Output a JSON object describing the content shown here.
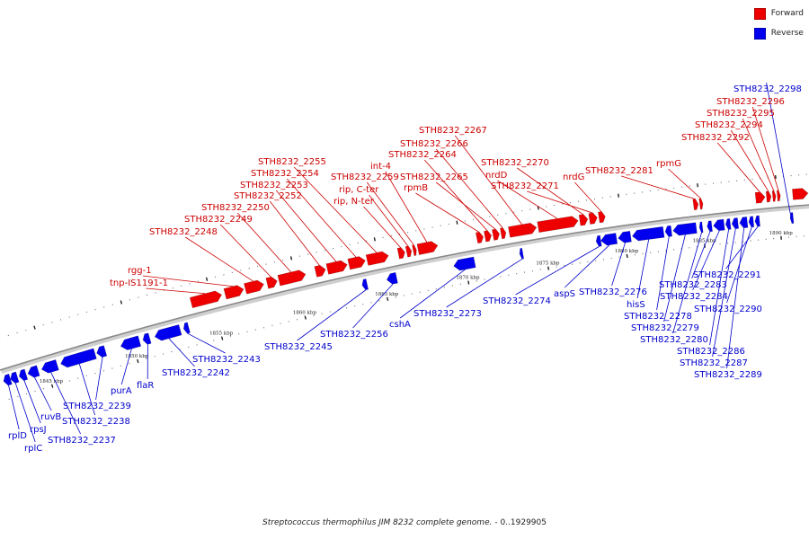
{
  "legend": {
    "forward": {
      "label": "Forward",
      "color": "#ee0000"
    },
    "reverse": {
      "label": "Reverse",
      "color": "#0000ee"
    }
  },
  "caption": {
    "genome": "Streptococcus thermophilus JIM 8232 complete genome.",
    "range": " - 0..1929905"
  },
  "axis": {
    "start_kb": 1842.5,
    "end_kb": 1892,
    "ticks": [
      {
        "kb": 1845,
        "label": "1845 kbp"
      },
      {
        "kb": 1850,
        "label": "1850 kbp"
      },
      {
        "kb": 1855,
        "label": "1855 kbp"
      },
      {
        "kb": 1860,
        "label": "1860 kbp"
      },
      {
        "kb": 1865,
        "label": "1865 kbp"
      },
      {
        "kb": 1870,
        "label": "1870 kbp"
      },
      {
        "kb": 1875,
        "label": "1875 kbp"
      },
      {
        "kb": 1880,
        "label": "1880 kbp"
      },
      {
        "kb": 1885,
        "label": "1885 kbp"
      },
      {
        "kb": 1890,
        "label": "1890 kbp"
      }
    ]
  },
  "genes": [
    {
      "strand": "reverse",
      "start_kb": 1842.5,
      "end_kb": 1842.9,
      "label": "rplD",
      "side": 0
    },
    {
      "strand": "reverse",
      "start_kb": 1842.9,
      "end_kb": 1843.3,
      "label": "rplC",
      "side": 1
    },
    {
      "strand": "reverse",
      "start_kb": 1843.4,
      "end_kb": 1843.8,
      "label": "rpsJ",
      "side": 2
    },
    {
      "strand": "reverse",
      "start_kb": 1843.9,
      "end_kb": 1844.5,
      "label": "ruvB",
      "side": 3
    },
    {
      "strand": "reverse",
      "start_kb": 1844.7,
      "end_kb": 1845.6,
      "label": "STH8232_2237",
      "side": 4
    },
    {
      "strand": "reverse",
      "start_kb": 1845.8,
      "end_kb": 1847.8,
      "label": "STH8232_2238",
      "side": 5
    },
    {
      "strand": "reverse",
      "start_kb": 1847.9,
      "end_kb": 1848.4,
      "label": "STH8232_2239",
      "side": 6
    },
    {
      "strand": "reverse",
      "start_kb": 1849.3,
      "end_kb": 1850.4,
      "label": "purA",
      "side": 7
    },
    {
      "strand": "reverse",
      "start_kb": 1850.6,
      "end_kb": 1851.0,
      "label": "flaR",
      "side": 8
    },
    {
      "strand": "reverse",
      "start_kb": 1851.3,
      "end_kb": 1852.8,
      "label": "STH8232_2242",
      "side": 9
    },
    {
      "strand": "reverse",
      "start_kb": 1853.0,
      "end_kb": 1853.3,
      "label": "STH8232_2243",
      "side": 10
    },
    {
      "strand": "forward",
      "start_kb": 1853.8,
      "end_kb": 1855.6,
      "label": "tnp-IS1191-1",
      "side": 0
    },
    {
      "strand": "forward",
      "start_kb": 1855.8,
      "end_kb": 1856.9,
      "label": "rgg-1",
      "side": 1
    },
    {
      "strand": "forward",
      "start_kb": 1857.0,
      "end_kb": 1858.1,
      "label": "STH8232_2248",
      "side": 2
    },
    {
      "strand": "forward",
      "start_kb": 1858.3,
      "end_kb": 1858.9,
      "label": "STH8232_2249",
      "side": 3
    },
    {
      "strand": "forward",
      "start_kb": 1859.0,
      "end_kb": 1860.6,
      "label": "STH8232_2250",
      "side": 4
    },
    {
      "strand": "forward",
      "start_kb": 1861.2,
      "end_kb": 1861.8,
      "label": "STH8232_2252",
      "side": 5
    },
    {
      "strand": "forward",
      "start_kb": 1861.9,
      "end_kb": 1863.1,
      "label": "STH8232_2253",
      "side": 6
    },
    {
      "strand": "forward",
      "start_kb": 1863.2,
      "end_kb": 1864.2,
      "label": "STH8232_2254",
      "side": 7
    },
    {
      "strand": "reverse",
      "start_kb": 1863.7,
      "end_kb": 1864.0,
      "label": "STH8232_2245",
      "side": 11
    },
    {
      "strand": "forward",
      "start_kb": 1864.3,
      "end_kb": 1865.6,
      "label": "STH8232_2255",
      "side": 8
    },
    {
      "strand": "reverse",
      "start_kb": 1865.2,
      "end_kb": 1865.8,
      "label": "STH8232_2256",
      "side": 12
    },
    {
      "strand": "forward",
      "start_kb": 1866.2,
      "end_kb": 1866.6,
      "label": "rip, N-ter",
      "side": 9
    },
    {
      "strand": "forward",
      "start_kb": 1866.7,
      "end_kb": 1867.0,
      "label": "rip, C-ter",
      "side": 10
    },
    {
      "strand": "forward",
      "start_kb": 1867.1,
      "end_kb": 1867.3,
      "label": "STH8232_2259",
      "side": 11
    },
    {
      "strand": "forward",
      "start_kb": 1867.4,
      "end_kb": 1868.6,
      "label": "int-4",
      "side": 12
    },
    {
      "strand": "reverse",
      "start_kb": 1869.3,
      "end_kb": 1870.6,
      "label": "cshA",
      "side": 13
    },
    {
      "strand": "forward",
      "start_kb": 1871.0,
      "end_kb": 1871.4,
      "label": "rpmB",
      "side": 13
    },
    {
      "strand": "forward",
      "start_kb": 1871.5,
      "end_kb": 1871.9,
      "label": "STH8232_2264",
      "side": 14
    },
    {
      "strand": "forward",
      "start_kb": 1872.0,
      "end_kb": 1872.4,
      "label": "STH8232_2265",
      "side": 15
    },
    {
      "strand": "forward",
      "start_kb": 1872.5,
      "end_kb": 1872.8,
      "label": "STH8232_2266",
      "side": 16
    },
    {
      "strand": "forward",
      "start_kb": 1873.0,
      "end_kb": 1874.7,
      "label": "STH8232_2267",
      "side": 17
    },
    {
      "strand": "reverse",
      "start_kb": 1873.4,
      "end_kb": 1873.6,
      "label": "STH8232_2273",
      "side": 14
    },
    {
      "strand": "forward",
      "start_kb": 1874.8,
      "end_kb": 1877.3,
      "label": "nrdD",
      "side": 18
    },
    {
      "strand": "forward",
      "start_kb": 1877.4,
      "end_kb": 1877.9,
      "label": "STH8232_2270",
      "side": 19
    },
    {
      "strand": "forward",
      "start_kb": 1878.0,
      "end_kb": 1878.5,
      "label": "STH8232_2271",
      "side": 20
    },
    {
      "strand": "forward",
      "start_kb": 1878.6,
      "end_kb": 1879.0,
      "label": "nrdG",
      "side": 21
    },
    {
      "strand": "reverse",
      "start_kb": 1878.2,
      "end_kb": 1878.5,
      "label": "STH8232_2274",
      "side": 15
    },
    {
      "strand": "reverse",
      "start_kb": 1878.5,
      "end_kb": 1879.5,
      "label": "aspS",
      "side": 16
    },
    {
      "strand": "reverse",
      "start_kb": 1879.6,
      "end_kb": 1880.4,
      "label": "STH8232_2276",
      "side": 17
    },
    {
      "strand": "reverse",
      "start_kb": 1880.5,
      "end_kb": 1882.5,
      "label": "hisS",
      "side": 18
    },
    {
      "strand": "reverse",
      "start_kb": 1882.6,
      "end_kb": 1883.0,
      "label": "STH8232_2278",
      "side": 19
    },
    {
      "strand": "reverse",
      "start_kb": 1883.1,
      "end_kb": 1884.6,
      "label": "STH8232_2279",
      "side": 20
    },
    {
      "strand": "reverse",
      "start_kb": 1884.8,
      "end_kb": 1885.0,
      "label": "STH8232_2280",
      "side": 21
    },
    {
      "strand": "forward",
      "start_kb": 1884.6,
      "end_kb": 1884.9,
      "label": "STH8232_2281",
      "side": 22
    },
    {
      "strand": "forward",
      "start_kb": 1885.0,
      "end_kb": 1885.2,
      "label": "rpmG",
      "side": 23
    },
    {
      "strand": "reverse",
      "start_kb": 1885.3,
      "end_kb": 1885.6,
      "label": "STH8232_2283",
      "side": 22
    },
    {
      "strand": "reverse",
      "start_kb": 1885.7,
      "end_kb": 1886.4,
      "label": "STH8232_2284",
      "side": 23
    },
    {
      "strand": "reverse",
      "start_kb": 1886.5,
      "end_kb": 1886.8,
      "label": "STH8232_2286",
      "side": 24
    },
    {
      "strand": "reverse",
      "start_kb": 1886.9,
      "end_kb": 1887.3,
      "label": "STH8232_2287",
      "side": 25
    },
    {
      "strand": "reverse",
      "start_kb": 1887.4,
      "end_kb": 1887.9,
      "label": "STH8232_2289",
      "side": 26
    },
    {
      "strand": "reverse",
      "start_kb": 1888.0,
      "end_kb": 1888.3,
      "label": "STH8232_2290",
      "side": 27
    },
    {
      "strand": "reverse",
      "start_kb": 1888.4,
      "end_kb": 1888.7,
      "label": "STH8232_2291",
      "side": 28
    },
    {
      "strand": "forward",
      "start_kb": 1888.6,
      "end_kb": 1889.2,
      "label": "STH8232_2292",
      "side": 24
    },
    {
      "strand": "forward",
      "start_kb": 1889.3,
      "end_kb": 1889.6,
      "label": "STH8232_2294",
      "side": 25
    },
    {
      "strand": "forward",
      "start_kb": 1889.7,
      "end_kb": 1889.9,
      "label": "STH8232_2295",
      "side": 26
    },
    {
      "strand": "forward",
      "start_kb": 1890.0,
      "end_kb": 1890.2,
      "label": "STH8232_2296",
      "side": 27
    },
    {
      "strand": "reverse",
      "start_kb": 1890.7,
      "end_kb": 1890.9,
      "label": "STH8232_2298",
      "side": 29
    },
    {
      "strand": "forward",
      "start_kb": 1891.0,
      "end_kb": 1892.0,
      "label": "",
      "side": -1
    }
  ],
  "label_slots": {
    "forward": [
      [
        122,
        318,
        "tnp-IS1191-1"
      ],
      [
        142,
        304,
        "rgg-1"
      ],
      [
        166,
        261,
        "STH8232_2248"
      ],
      [
        205,
        247,
        "STH8232_2249"
      ],
      [
        224,
        234,
        "STH8232_2250"
      ],
      [
        260,
        221,
        "STH8232_2252"
      ],
      [
        267,
        209,
        "STH8232_2253"
      ],
      [
        279,
        196,
        "STH8232_2254"
      ],
      [
        287,
        183,
        "STH8232_2255"
      ],
      [
        371,
        227,
        "rip, N-ter"
      ],
      [
        377,
        214,
        "rip, C-ter"
      ],
      [
        368,
        200,
        "STH8232_2259"
      ],
      [
        412,
        188,
        "int-4"
      ],
      [
        449,
        212,
        "rpmB"
      ],
      [
        445,
        200,
        "STH8232_2265"
      ],
      [
        432,
        175,
        "STH8232_2264"
      ],
      [
        445,
        163,
        "STH8232_2266"
      ],
      [
        466,
        148,
        "STH8232_2267"
      ],
      [
        540,
        198,
        "nrdD"
      ],
      [
        535,
        184,
        "STH8232_2270"
      ],
      [
        546,
        210,
        "STH8232_2271"
      ],
      [
        626,
        200,
        "nrdG"
      ],
      [
        651,
        193,
        "STH8232_2281"
      ],
      [
        730,
        185,
        "rpmG"
      ],
      [
        758,
        156,
        "STH8232_2292"
      ],
      [
        773,
        142,
        "STH8232_2294"
      ],
      [
        786,
        129,
        "STH8232_2295"
      ],
      [
        797,
        116,
        "STH8232_2296"
      ]
    ],
    "reverse": [
      [
        9,
        488,
        "rplD"
      ],
      [
        27,
        502,
        "rplC"
      ],
      [
        33,
        481,
        "rpsJ"
      ],
      [
        45,
        467,
        "ruvB"
      ],
      [
        53,
        493,
        "STH8232_2237"
      ],
      [
        69,
        472,
        "STH8232_2238"
      ],
      [
        70,
        455,
        "STH8232_2239"
      ],
      [
        123,
        438,
        "purA"
      ],
      [
        152,
        432,
        "flaR"
      ],
      [
        180,
        418,
        "STH8232_2242"
      ],
      [
        214,
        403,
        "STH8232_2243"
      ],
      [
        294,
        389,
        "STH8232_2245"
      ],
      [
        356,
        375,
        "STH8232_2256"
      ],
      [
        433,
        364,
        "cshA"
      ],
      [
        460,
        352,
        "STH8232_2273"
      ],
      [
        537,
        338,
        "STH8232_2274"
      ],
      [
        616,
        330,
        "aspS"
      ],
      [
        644,
        328,
        "STH8232_2276"
      ],
      [
        697,
        342,
        "hisS"
      ],
      [
        694,
        355,
        "STH8232_2278"
      ],
      [
        702,
        368,
        "STH8232_2279"
      ],
      [
        712,
        381,
        "STH8232_2280"
      ],
      [
        733,
        320,
        "STH8232_2283"
      ],
      [
        734,
        333,
        "STH8232_2284"
      ],
      [
        753,
        394,
        "STH8232_2286"
      ],
      [
        756,
        407,
        "STH8232_2287"
      ],
      [
        772,
        420,
        "STH8232_2289"
      ],
      [
        772,
        347,
        "STH8232_2290"
      ],
      [
        771,
        309,
        "STH8232_2291"
      ],
      [
        816,
        102,
        "STH8232_2298"
      ]
    ]
  }
}
